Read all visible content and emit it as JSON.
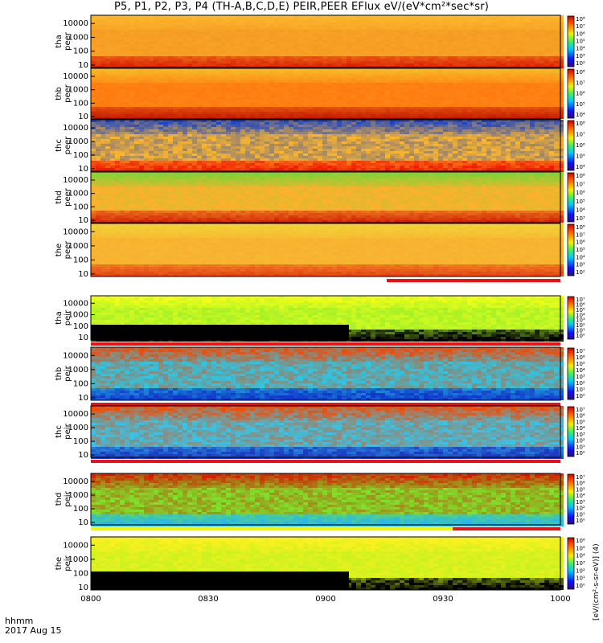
{
  "title": "P5, P1, P2, P3, P4 (TH-A,B,C,D,E) PEIR,PEER EFlux eV/(eV*cm²*sec*sr)",
  "footer": {
    "hhmm": "hhmm",
    "date": "2017 Aug 15"
  },
  "colorbar_text": "[eV/(cm²-s-sr-eV)] (4)",
  "colors": {
    "frame": "#000000",
    "bar_red": "#ee1010",
    "bar_yellow": "#f5f500",
    "fill_black": "#000000"
  },
  "chart_data": {
    "type": "heatmap",
    "x_ticks": [
      "0800",
      "0830",
      "0900",
      "0930",
      "1000"
    ],
    "x_range": [
      "0800",
      "1000"
    ],
    "y_ticks": [
      "10",
      "100",
      "1000",
      "10000"
    ],
    "y_scale": "log",
    "panels": [
      {
        "id": "tha-peer",
        "ylabel": [
          "tha",
          "peer"
        ],
        "cb_ticks": [
          "10²",
          "10³",
          "10⁴",
          "10⁵",
          "10⁶",
          "10⁷",
          "10⁸"
        ],
        "base": "#f59b23",
        "low": "#d90a00",
        "high": "#ffbf2f",
        "noise": 0.2,
        "bar": null
      },
      {
        "id": "thb-peer",
        "ylabel": [
          "thb",
          "peer"
        ],
        "cb_ticks": [
          "10⁴",
          "10⁵",
          "10⁶",
          "10⁷",
          "10⁸"
        ],
        "base": "#ff7a10",
        "low": "#b30000",
        "high": "#f5d431",
        "noise": 0.12,
        "bar": null
      },
      {
        "id": "thc-peer",
        "ylabel": [
          "thc",
          "peer"
        ],
        "cb_ticks": [
          "10⁴",
          "10⁵",
          "10⁶",
          "10⁷",
          "10⁸"
        ],
        "base": "#ffb72a",
        "low": "#ee1b00",
        "high": "#1440c9",
        "noise": 0.42,
        "bar": null
      },
      {
        "id": "thd-peer",
        "ylabel": [
          "thd",
          "peer"
        ],
        "cb_ticks": [
          "10³",
          "10⁴",
          "10⁵",
          "10⁶",
          "10⁷",
          "10⁸"
        ],
        "base": "#ffb02c",
        "low": "#c90500",
        "high": "#50e038",
        "noise": 0.18,
        "bar": null
      },
      {
        "id": "the-peer",
        "ylabel": [
          "the",
          "peer"
        ],
        "cb_ticks": [
          "10²",
          "10³",
          "10⁴",
          "10⁵",
          "10⁶",
          "10⁷",
          "10⁸"
        ],
        "base": "#f8b030",
        "low": "#e1290c",
        "high": "#f0df39",
        "noise": 0.16,
        "bar": "red-right"
      },
      {
        "id": "tha-peir",
        "ylabel": [
          "tha",
          "peir"
        ],
        "cb_ticks": [
          "10⁰",
          "10¹",
          "10²",
          "10³",
          "10⁴",
          "10⁵",
          "10⁶",
          "10⁷"
        ],
        "base": "#a5f127",
        "low": "#000000",
        "high": "#f4ff1a",
        "noise": 0.55,
        "bar": "red-full"
      },
      {
        "id": "thb-peir",
        "ylabel": [
          "thb",
          "peir"
        ],
        "cb_ticks": [
          "10⁰",
          "10¹",
          "10²",
          "10³",
          "10⁴",
          "10⁵",
          "10⁶",
          "10⁷"
        ],
        "base": "#28c8e9",
        "low": "#1038c9",
        "high": "#f04a07",
        "noise": 0.5,
        "bar": "red-full"
      },
      {
        "id": "thc-peir",
        "ylabel": [
          "thc",
          "peir"
        ],
        "cb_ticks": [
          "10⁰",
          "10¹",
          "10²",
          "10³",
          "10⁴",
          "10⁵",
          "10⁶",
          "10⁷"
        ],
        "base": "#33c6ec",
        "low": "#1d3ac3",
        "high": "#ef4d07",
        "noise": 0.5,
        "bar": "red-full"
      },
      {
        "id": "thd-peir",
        "ylabel": [
          "thd",
          "peir"
        ],
        "cb_ticks": [
          "10⁰",
          "10¹",
          "10²",
          "10³",
          "10⁴",
          "10⁵",
          "10⁶",
          "10⁷"
        ],
        "base": "#7be52b",
        "low": "#26b7f0",
        "high": "#d81200",
        "noise": 0.4,
        "bar": "yellow-red"
      },
      {
        "id": "the-peir",
        "ylabel": [
          "the",
          "peir"
        ],
        "cb_ticks": [
          "10⁰",
          "10¹",
          "10²",
          "10³",
          "10⁴",
          "10⁵",
          "10⁶"
        ],
        "base": "#c9f21f",
        "low": "#000000",
        "high": "#fff01f",
        "noise": 0.55,
        "bar": null
      }
    ]
  }
}
